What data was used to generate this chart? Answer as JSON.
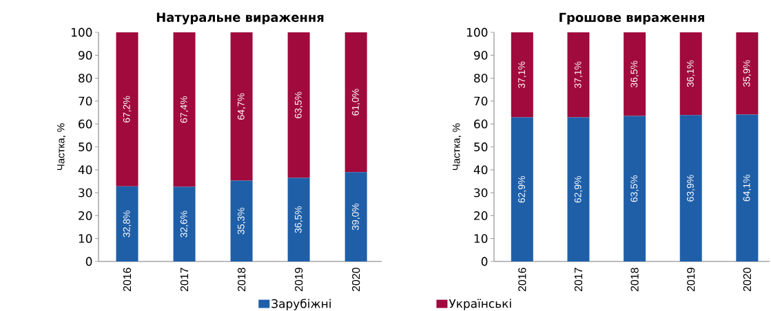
{
  "chart_data": [
    {
      "type": "bar",
      "stacked": true,
      "title": "Натуральне вираження",
      "ylabel": "Частка, %",
      "categories": [
        "2016",
        "2017",
        "2018",
        "2019",
        "2020"
      ],
      "ylim": [
        0,
        100
      ],
      "yticks": [
        0,
        10,
        20,
        30,
        40,
        50,
        60,
        70,
        80,
        90,
        100
      ],
      "legend": "bottom",
      "series": [
        {
          "name": "Зарубіжні",
          "color": "#1f5fa8",
          "values": [
            32.8,
            32.6,
            35.3,
            36.5,
            39.0
          ],
          "value_labels": [
            "32,8%",
            "32,6%",
            "35,3%",
            "36,5%",
            "39,0%"
          ]
        },
        {
          "name": "Українські",
          "color": "#a00a3c",
          "values": [
            67.2,
            67.4,
            64.7,
            63.5,
            61.0
          ],
          "value_labels": [
            "67,2%",
            "67,4%",
            "64,7%",
            "63,5%",
            "61,0%"
          ]
        }
      ]
    },
    {
      "type": "bar",
      "stacked": true,
      "title": "Грошове вираження",
      "ylabel": "Частка, %",
      "categories": [
        "2016",
        "2017",
        "2018",
        "2019",
        "2020"
      ],
      "ylim": [
        0,
        100
      ],
      "yticks": [
        0,
        10,
        20,
        30,
        40,
        50,
        60,
        70,
        80,
        90,
        100
      ],
      "series": [
        {
          "color": "#1f5fa8",
          "values": [
            62.9,
            62.9,
            63.5,
            63.9,
            64.1
          ],
          "value_labels": [
            "62,9%",
            "62,9%",
            "63,5%",
            "63,9%",
            "64,1%"
          ]
        },
        {
          "color": "#a00a3c",
          "values": [
            37.1,
            37.1,
            36.5,
            36.1,
            35.9
          ],
          "value_labels": [
            "37,1%",
            "37,1%",
            "36,5%",
            "36,1%",
            "35,9%"
          ]
        }
      ]
    }
  ]
}
